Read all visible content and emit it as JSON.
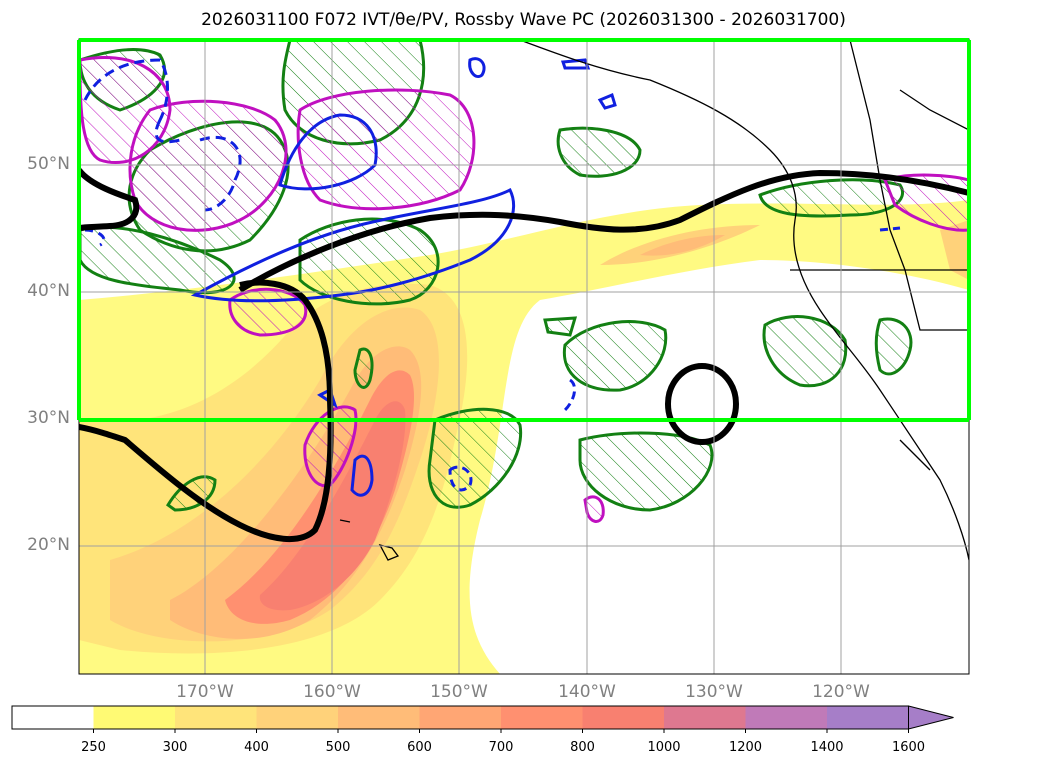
{
  "title": "2026031100 F072 IVT/θe/PV, Rossby Wave PC (2026031300 - 2026031700)",
  "latitude_labels": [
    "50°N",
    "40°N",
    "30°N",
    "20°N"
  ],
  "longitude_labels": [
    "170°W",
    "160°W",
    "150°W",
    "140°W",
    "130°W",
    "120°W"
  ],
  "colorbar": {
    "ticks": [
      "250",
      "300",
      "400",
      "500",
      "600",
      "700",
      "800",
      "1000",
      "1200",
      "1400",
      "1600"
    ],
    "colors": [
      "#ffffff",
      "#fffa74",
      "#ffe47a",
      "#ffd27a",
      "#ffbc78",
      "#ffa674",
      "#ff9070",
      "#f88070",
      "#de7890",
      "#c07ab8",
      "#a67ec8"
    ]
  },
  "contour_colors": {
    "ivt_fill": "#ffd070",
    "green": "#138013",
    "blue": "#1020e0",
    "magenta": "#c010c0",
    "black": "#000000",
    "box": "#00ff00"
  }
}
